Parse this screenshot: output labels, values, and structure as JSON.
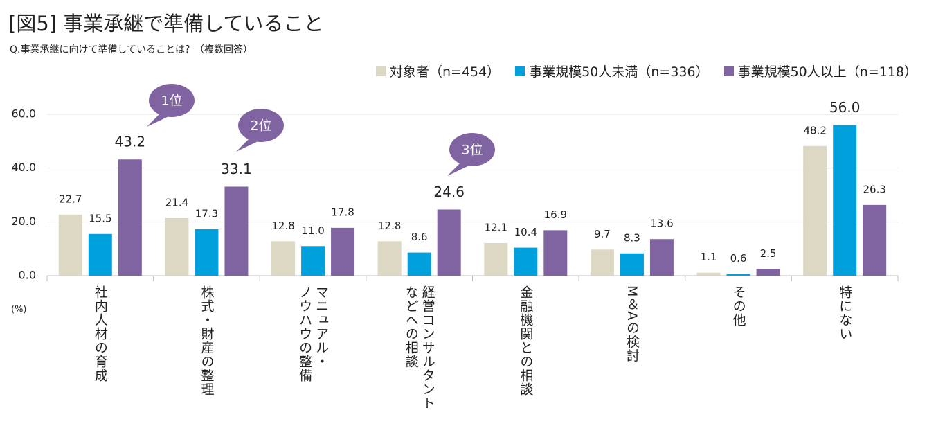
{
  "title": "[図5] 事業承継で準備していること",
  "subtitle": "Q.事業承継に向けて準備していることは？（複数回答）",
  "chart_data": {
    "type": "bar",
    "categories": [
      "社内人材の育成",
      "株式・財産の整理",
      "マニュアル・\nノウハウの整備",
      "経営コンサルタント\nなどへの相談",
      "金融機関との相談",
      "M＆Aの検討",
      "その他",
      "特にない"
    ],
    "series": [
      {
        "name": "対象者（n=454）",
        "color": "#ddd8c3",
        "values": [
          22.7,
          21.4,
          12.8,
          12.8,
          12.1,
          9.7,
          1.1,
          48.2
        ],
        "value_labels": [
          "22.7",
          "21.4",
          "12.8",
          "12.8",
          "12.1",
          "9.7",
          "1.1",
          "48.2"
        ]
      },
      {
        "name": "事業規模50人未満（n=336）",
        "color": "#00a0dc",
        "values": [
          15.5,
          17.3,
          11.0,
          8.6,
          10.4,
          8.3,
          0.6,
          56.0
        ],
        "value_labels": [
          "15.5",
          "17.3",
          "11.0",
          "8.6",
          "10.4",
          "8.3",
          "0.6",
          "56.0"
        ]
      },
      {
        "name": "事業規模50人以上（n=118）",
        "color": "#8064a2",
        "values": [
          43.2,
          33.1,
          17.8,
          24.6,
          16.9,
          13.6,
          2.5,
          26.3
        ],
        "value_labels": [
          "43.2",
          "33.1",
          "17.8",
          "24.6",
          "16.9",
          "13.6",
          "2.5",
          "26.3"
        ]
      }
    ],
    "ylim": [
      0,
      60
    ],
    "yticks": [
      {
        "value": 0,
        "label": "0.0"
      },
      {
        "value": 20,
        "label": "20.0"
      },
      {
        "value": 40,
        "label": "40.0"
      },
      {
        "value": 60,
        "label": "60.0"
      }
    ],
    "y_unit": "(%)",
    "grid": true,
    "legend": "top-right",
    "annotations": [
      "1位",
      "2位",
      "3位"
    ]
  }
}
